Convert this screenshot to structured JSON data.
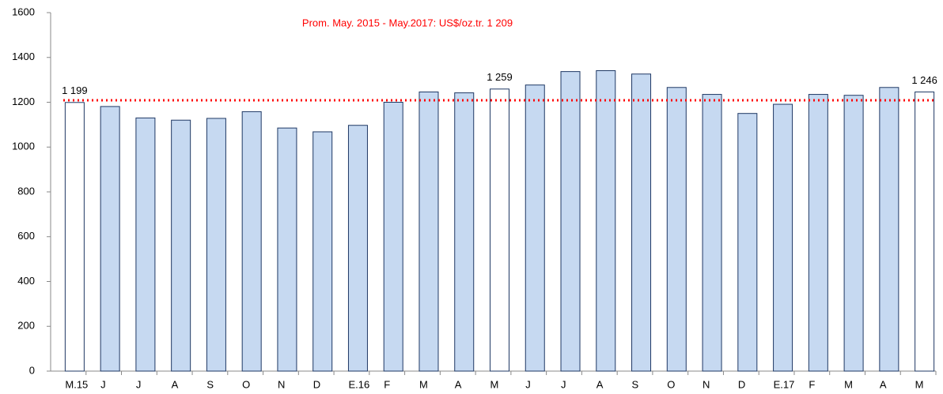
{
  "chart_data": {
    "type": "bar",
    "categories": [
      "M.15",
      "J",
      "J",
      "A",
      "S",
      "O",
      "N",
      "D",
      "E.16",
      "F",
      "M",
      "A",
      "M",
      "J",
      "J",
      "A",
      "S",
      "O",
      "N",
      "D",
      "E.17",
      "F",
      "M",
      "A",
      "M"
    ],
    "values": [
      1199,
      1181,
      1130,
      1120,
      1128,
      1158,
      1085,
      1068,
      1097,
      1200,
      1246,
      1242,
      1259,
      1277,
      1337,
      1341,
      1326,
      1266,
      1235,
      1150,
      1191,
      1235,
      1231,
      1266,
      1246
    ],
    "value_labels": [
      "1 199",
      null,
      null,
      null,
      null,
      null,
      null,
      null,
      null,
      null,
      null,
      null,
      "1 259",
      null,
      null,
      null,
      null,
      null,
      null,
      null,
      null,
      null,
      null,
      null,
      "1 246"
    ],
    "colors": [
      "#ffffff",
      "#c6d9f1",
      "#c6d9f1",
      "#c6d9f1",
      "#c6d9f1",
      "#c6d9f1",
      "#c6d9f1",
      "#c6d9f1",
      "#c6d9f1",
      "#c6d9f1",
      "#c6d9f1",
      "#c6d9f1",
      "#ffffff",
      "#c6d9f1",
      "#c6d9f1",
      "#c6d9f1",
      "#c6d9f1",
      "#c6d9f1",
      "#c6d9f1",
      "#c6d9f1",
      "#c6d9f1",
      "#c6d9f1",
      "#c6d9f1",
      "#c6d9f1",
      "#ffffff"
    ],
    "edge_color": "#1f3864",
    "reference_line": {
      "value": 1209,
      "color": "#ff0000",
      "annotation": "Prom. May. 2015 - May.2017: US$/oz.tr. 1 209"
    },
    "ylim": [
      0,
      1600
    ],
    "yticks": [
      0,
      200,
      400,
      600,
      800,
      1000,
      1200,
      1400,
      1600
    ],
    "grid": false
  }
}
